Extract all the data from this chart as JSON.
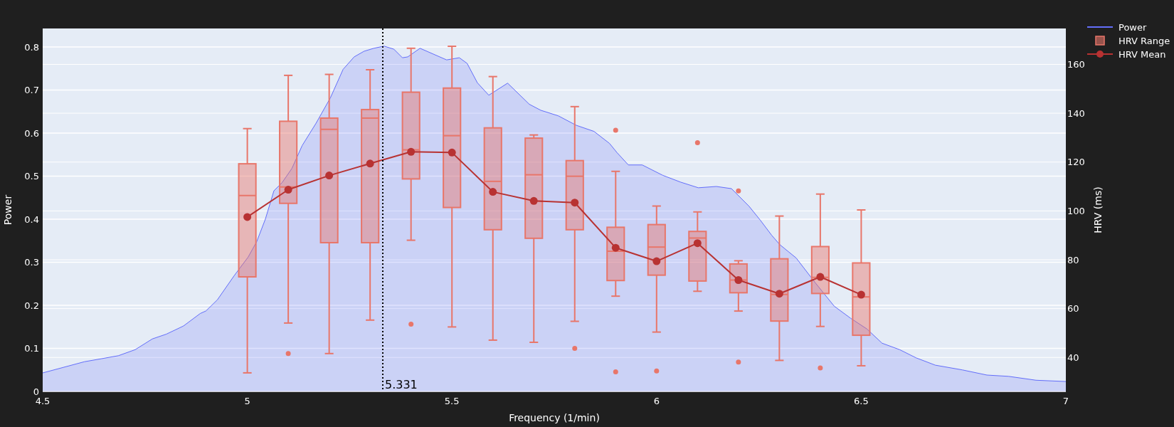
{
  "chart_data": {
    "type": "line",
    "xlabel": "Frequency (1/min)",
    "ylabel": "Power",
    "y2label": "HRV (ms)",
    "xlim": [
      4.5,
      7
    ],
    "xticks": [
      4.5,
      5,
      5.5,
      6,
      6.5,
      7
    ],
    "ylim": [
      0,
      0.843
    ],
    "yticks": [
      0,
      0.1,
      0.2,
      0.3,
      0.4,
      0.5,
      0.6,
      0.7,
      0.8
    ],
    "y2lim": [
      26.1,
      174.7
    ],
    "y2ticks": [
      40,
      60,
      80,
      100,
      120,
      140,
      160
    ],
    "grid": "y",
    "legend": "top right",
    "ref_lines": [
      {
        "axis": "x",
        "value": 5.331,
        "label": "5.331",
        "color": "#000000",
        "line_style": "dotted"
      }
    ],
    "series": [
      {
        "name": "Power",
        "type": "area",
        "color": "#636efa",
        "x": [
          4.5,
          4.602,
          4.644,
          4.685,
          4.726,
          4.768,
          4.802,
          4.844,
          4.885,
          4.899,
          4.927,
          4.968,
          5.002,
          5.023,
          5.044,
          5.065,
          5.085,
          5.109,
          5.134,
          5.168,
          5.203,
          5.234,
          5.261,
          5.285,
          5.309,
          5.334,
          5.358,
          5.379,
          5.392,
          5.422,
          5.487,
          5.518,
          5.537,
          5.562,
          5.59,
          5.636,
          5.689,
          5.717,
          5.76,
          5.804,
          5.847,
          5.885,
          5.903,
          5.931,
          5.965,
          6.015,
          6.059,
          6.102,
          6.146,
          6.183,
          6.226,
          6.254,
          6.281,
          6.301,
          6.341,
          6.388,
          6.434,
          6.474,
          6.514,
          6.551,
          6.594,
          6.634,
          6.681,
          6.747,
          6.807,
          6.86,
          6.927,
          7.0
        ],
        "values": [
          0.043,
          0.069,
          0.076,
          0.083,
          0.097,
          0.122,
          0.133,
          0.152,
          0.181,
          0.187,
          0.213,
          0.269,
          0.312,
          0.348,
          0.4,
          0.466,
          0.485,
          0.518,
          0.571,
          0.623,
          0.682,
          0.748,
          0.777,
          0.79,
          0.797,
          0.802,
          0.795,
          0.775,
          0.777,
          0.797,
          0.77,
          0.775,
          0.762,
          0.717,
          0.688,
          0.716,
          0.667,
          0.653,
          0.64,
          0.618,
          0.604,
          0.576,
          0.555,
          0.526,
          0.526,
          0.502,
          0.486,
          0.473,
          0.476,
          0.471,
          0.43,
          0.397,
          0.363,
          0.341,
          0.31,
          0.252,
          0.198,
          0.17,
          0.145,
          0.112,
          0.097,
          0.078,
          0.061,
          0.05,
          0.038,
          0.035,
          0.026,
          0.023
        ]
      },
      {
        "name": "HRV Range",
        "type": "box",
        "axis": "y2",
        "color": "#e8766a",
        "x": [
          5.0,
          5.1,
          5.2,
          5.3,
          5.4,
          5.5,
          5.6,
          5.7,
          5.8,
          5.9,
          6.0,
          6.1,
          6.2,
          6.3,
          6.4,
          6.5
        ],
        "boxes": [
          {
            "low": 33.7,
            "q1": 73.0,
            "median": 106.3,
            "q3": 119.3,
            "high": 133.7
          },
          {
            "low": 54.1,
            "q1": 103.1,
            "median": 109.8,
            "q3": 136.7,
            "high": 155.5,
            "outliers": [
              41.6
            ]
          },
          {
            "low": 41.6,
            "q1": 87.0,
            "median": 133.4,
            "q3": 138.0,
            "high": 155.9
          },
          {
            "low": 55.3,
            "q1": 87.0,
            "median": 138.0,
            "q3": 141.5,
            "high": 157.8
          },
          {
            "low": 88.0,
            "q1": 113.1,
            "median": 125.0,
            "q3": 148.6,
            "high": 166.6,
            "outliers": [
              53.6
            ]
          },
          {
            "low": 52.5,
            "q1": 101.4,
            "median": 130.8,
            "q3": 150.3,
            "high": 167.4
          },
          {
            "low": 47.1,
            "q1": 92.3,
            "median": 112.1,
            "q3": 134.0,
            "high": 155.0
          },
          {
            "low": 46.2,
            "q1": 88.8,
            "median": 114.8,
            "q3": 129.8,
            "high": 131.1
          },
          {
            "low": 54.8,
            "q1": 92.3,
            "median": 114.2,
            "q3": 120.6,
            "high": 142.7,
            "outliers": [
              43.7
            ]
          },
          {
            "low": 65.1,
            "q1": 71.5,
            "median": 83.5,
            "q3": 93.3,
            "high": 116.2,
            "outliers": [
              133.0,
              34.1
            ]
          },
          {
            "low": 50.4,
            "q1": 73.7,
            "median": 85.2,
            "q3": 94.4,
            "high": 102.0,
            "outliers": [
              34.5
            ]
          },
          {
            "low": 67.1,
            "q1": 71.3,
            "median": 88.9,
            "q3": 91.6,
            "high": 99.6,
            "outliers": [
              127.9
            ]
          },
          {
            "low": 59.0,
            "q1": 66.5,
            "median": 71.7,
            "q3": 78.3,
            "high": 79.6,
            "outliers": [
              108.2,
              38.1
            ]
          },
          {
            "low": 38.8,
            "q1": 54.9,
            "median": 65.8,
            "q3": 80.4,
            "high": 97.9
          },
          {
            "low": 52.7,
            "q1": 66.2,
            "median": 72.8,
            "q3": 85.4,
            "high": 106.9,
            "outliers": [
              35.7
            ]
          },
          {
            "low": 36.6,
            "q1": 49.1,
            "median": 64.8,
            "q3": 78.7,
            "high": 100.4
          }
        ]
      },
      {
        "name": "HRV Mean",
        "axis": "y2",
        "color": "#b83232",
        "marker": "circle",
        "x": [
          5.0,
          5.1,
          5.2,
          5.3,
          5.4,
          5.5,
          5.6,
          5.7,
          5.8,
          5.9,
          6.0,
          6.1,
          6.2,
          6.3,
          6.4,
          6.5
        ],
        "values": [
          97.5,
          108.7,
          114.5,
          119.4,
          124.2,
          123.9,
          107.8,
          104.1,
          103.4,
          84.9,
          79.4,
          86.8,
          71.7,
          66.1,
          73.0,
          65.7
        ]
      }
    ]
  }
}
